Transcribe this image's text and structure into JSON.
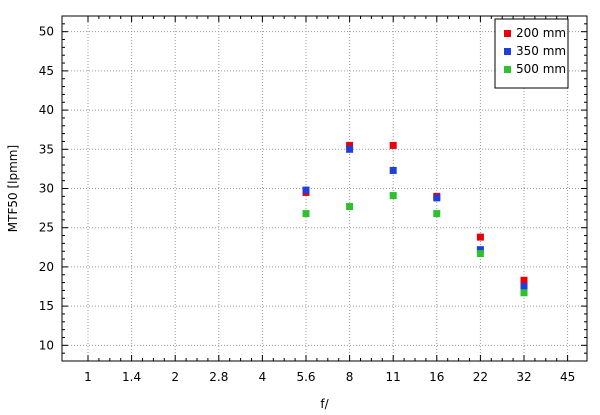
{
  "chart_data": {
    "type": "scatter",
    "xlabel": "f/",
    "ylabel": "MTF50 [lpmm]",
    "x_ticks": [
      "1",
      "1.4",
      "2",
      "2.8",
      "4",
      "5.6",
      "8",
      "11",
      "16",
      "22",
      "32",
      "45"
    ],
    "y_ticks": [
      10,
      15,
      20,
      25,
      30,
      35,
      40,
      45,
      50
    ],
    "ylim": [
      8,
      52
    ],
    "grid": true,
    "legend_position": "top-right",
    "series": [
      {
        "name": "200 mm",
        "color": "#e8000b",
        "points": [
          {
            "x": "5.6",
            "y": 29.5
          },
          {
            "x": "8",
            "y": 35.5
          },
          {
            "x": "11",
            "y": 35.5
          },
          {
            "x": "16",
            "y": 29.0
          },
          {
            "x": "22",
            "y": 23.8
          },
          {
            "x": "32",
            "y": 18.3
          }
        ]
      },
      {
        "name": "350 mm",
        "color": "#1f3fdc",
        "points": [
          {
            "x": "5.6",
            "y": 29.8
          },
          {
            "x": "8",
            "y": 35.0
          },
          {
            "x": "11",
            "y": 32.3
          },
          {
            "x": "16",
            "y": 28.8
          },
          {
            "x": "22",
            "y": 22.2
          },
          {
            "x": "32",
            "y": 17.5
          }
        ]
      },
      {
        "name": "500 mm",
        "color": "#2ec12e",
        "points": [
          {
            "x": "5.6",
            "y": 26.8
          },
          {
            "x": "8",
            "y": 27.7
          },
          {
            "x": "11",
            "y": 29.1
          },
          {
            "x": "16",
            "y": 26.8
          },
          {
            "x": "22",
            "y": 21.7
          },
          {
            "x": "32",
            "y": 16.7
          }
        ]
      }
    ]
  }
}
